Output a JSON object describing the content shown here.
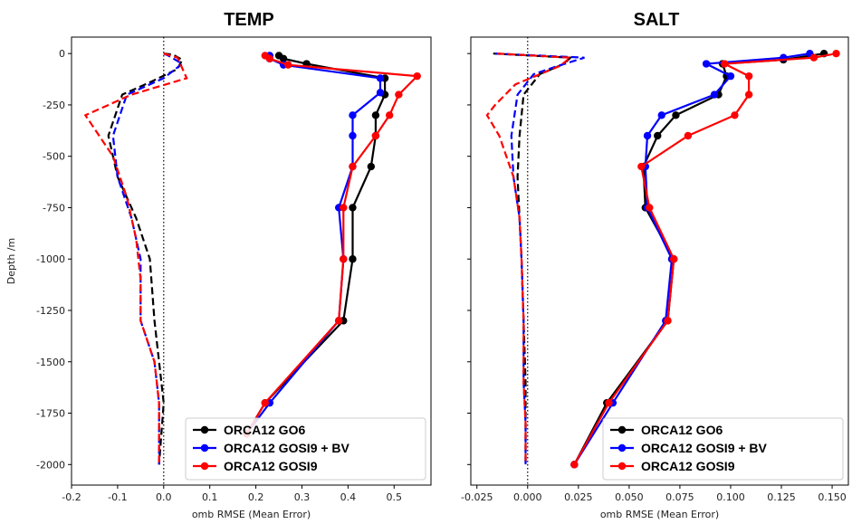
{
  "chart_data": [
    {
      "type": "line",
      "title": "TEMP",
      "xlabel": "omb RMSE (Mean Error)",
      "ylabel": "Depth /m",
      "xlim": [
        -0.2,
        0.58
      ],
      "ylim": [
        -2100,
        80
      ],
      "xticks": [
        -0.2,
        -0.1,
        0.0,
        0.1,
        0.2,
        0.3,
        0.4,
        0.5
      ],
      "xtick_labels": [
        "-0.2",
        "-0.1",
        "0.0",
        "0.1",
        "0.2",
        "0.3",
        "0.4",
        "0.5"
      ],
      "yticks": [
        0,
        -250,
        -500,
        -750,
        -1000,
        -1250,
        -1500,
        -1750,
        -2000
      ],
      "ytick_labels": [
        "0",
        "-250",
        "-500",
        "-750",
        "-1000",
        "-1250",
        "-1500",
        "-1750",
        "-2000"
      ],
      "zero_line": 0,
      "legend_position": "bottom-right",
      "series": [
        {
          "name": "ORCA12 GO6",
          "color": "#000000",
          "style": "rmse",
          "points": [
            [
              0.25,
              -10
            ],
            [
              0.26,
              -25
            ],
            [
              0.31,
              -50
            ],
            [
              0.48,
              -120
            ],
            [
              0.48,
              -200
            ],
            [
              0.46,
              -300
            ],
            [
              0.46,
              -400
            ],
            [
              0.45,
              -550
            ],
            [
              0.41,
              -750
            ],
            [
              0.41,
              -1000
            ],
            [
              0.39,
              -1300
            ],
            [
              0.22,
              -1700
            ],
            [
              0.18,
              -1850
            ]
          ]
        },
        {
          "name": "ORCA12 GOSI9 + BV",
          "color": "#0000ff",
          "style": "rmse",
          "points": [
            [
              0.23,
              -10
            ],
            [
              0.23,
              -25
            ],
            [
              0.26,
              -55
            ],
            [
              0.47,
              -120
            ],
            [
              0.47,
              -190
            ],
            [
              0.41,
              -300
            ],
            [
              0.41,
              -400
            ],
            [
              0.41,
              -550
            ],
            [
              0.38,
              -750
            ],
            [
              0.39,
              -1000
            ],
            [
              0.38,
              -1300
            ],
            [
              0.23,
              -1700
            ],
            [
              0.18,
              -1850
            ]
          ]
        },
        {
          "name": "ORCA12 GOSI9",
          "color": "#ff0000",
          "style": "rmse",
          "points": [
            [
              0.22,
              -10
            ],
            [
              0.23,
              -25
            ],
            [
              0.27,
              -55
            ],
            [
              0.55,
              -110
            ],
            [
              0.51,
              -200
            ],
            [
              0.49,
              -300
            ],
            [
              0.46,
              -400
            ],
            [
              0.41,
              -550
            ],
            [
              0.39,
              -750
            ],
            [
              0.39,
              -1000
            ],
            [
              0.38,
              -1300
            ],
            [
              0.22,
              -1700
            ],
            [
              0.18,
              -1850
            ]
          ]
        },
        {
          "name": "",
          "color": "#000000",
          "style": "mean",
          "points": [
            [
              0.0,
              0
            ],
            [
              0.02,
              -5
            ],
            [
              0.04,
              -30
            ],
            [
              0.03,
              -75
            ],
            [
              -0.03,
              -140
            ],
            [
              -0.09,
              -200
            ],
            [
              -0.12,
              -400
            ],
            [
              -0.1,
              -600
            ],
            [
              -0.06,
              -800
            ],
            [
              -0.03,
              -1000
            ],
            [
              -0.02,
              -1300
            ],
            [
              -0.01,
              -1500
            ],
            [
              0.0,
              -1700
            ],
            [
              -0.01,
              -2000
            ]
          ]
        },
        {
          "name": "",
          "color": "#0000ff",
          "style": "mean",
          "points": [
            [
              0.0,
              0
            ],
            [
              0.01,
              -10
            ],
            [
              0.04,
              -50
            ],
            [
              0.0,
              -120
            ],
            [
              -0.08,
              -200
            ],
            [
              -0.11,
              -400
            ],
            [
              -0.1,
              -600
            ],
            [
              -0.07,
              -800
            ],
            [
              -0.05,
              -1000
            ],
            [
              -0.05,
              -1300
            ],
            [
              -0.02,
              -1500
            ],
            [
              -0.01,
              -1700
            ],
            [
              -0.01,
              -2000
            ]
          ]
        },
        {
          "name": "",
          "color": "#ff0000",
          "style": "mean",
          "points": [
            [
              0.0,
              0
            ],
            [
              0.03,
              -20
            ],
            [
              0.05,
              -120
            ],
            [
              -0.07,
              -200
            ],
            [
              -0.17,
              -300
            ],
            [
              -0.11,
              -500
            ],
            [
              -0.08,
              -700
            ],
            [
              -0.06,
              -900
            ],
            [
              -0.05,
              -1100
            ],
            [
              -0.05,
              -1300
            ],
            [
              -0.02,
              -1500
            ],
            [
              -0.01,
              -1700
            ],
            [
              -0.01,
              -2000
            ]
          ]
        }
      ]
    },
    {
      "type": "line",
      "title": "SALT",
      "xlabel": "omb RMSE (Mean Error)",
      "ylabel": "",
      "xlim": [
        -0.028,
        0.158
      ],
      "ylim": [
        -2100,
        80
      ],
      "xticks": [
        -0.025,
        0.0,
        0.025,
        0.05,
        0.075,
        0.1,
        0.125,
        0.15
      ],
      "xtick_labels": [
        "-0.025",
        "0.000",
        "0.025",
        "0.050",
        "0.075",
        "0.100",
        "0.125",
        "0.150"
      ],
      "yticks": [
        0,
        -250,
        -500,
        -750,
        -1000,
        -1250,
        -1500,
        -1750,
        -2000
      ],
      "ytick_labels": [],
      "zero_line": 0,
      "legend_position": "bottom-right",
      "series": [
        {
          "name": "ORCA12 GO6",
          "color": "#000000",
          "style": "rmse",
          "points": [
            [
              0.146,
              0
            ],
            [
              0.126,
              -30
            ],
            [
              0.096,
              -50
            ],
            [
              0.098,
              -110
            ],
            [
              0.094,
              -200
            ],
            [
              0.073,
              -300
            ],
            [
              0.064,
              -400
            ],
            [
              0.057,
              -550
            ],
            [
              0.058,
              -750
            ],
            [
              0.072,
              -1000
            ],
            [
              0.069,
              -1300
            ],
            [
              0.039,
              -1700
            ],
            [
              0.023,
              -2000
            ]
          ]
        },
        {
          "name": "ORCA12 GOSI9 + BV",
          "color": "#0000ff",
          "style": "rmse",
          "points": [
            [
              0.139,
              0
            ],
            [
              0.126,
              -20
            ],
            [
              0.088,
              -50
            ],
            [
              0.1,
              -110
            ],
            [
              0.092,
              -200
            ],
            [
              0.066,
              -300
            ],
            [
              0.059,
              -400
            ],
            [
              0.058,
              -550
            ],
            [
              0.059,
              -750
            ],
            [
              0.071,
              -1000
            ],
            [
              0.068,
              -1300
            ],
            [
              0.042,
              -1700
            ],
            [
              0.023,
              -2000
            ]
          ]
        },
        {
          "name": "ORCA12 GOSI9",
          "color": "#ff0000",
          "style": "rmse",
          "points": [
            [
              0.152,
              0
            ],
            [
              0.141,
              -20
            ],
            [
              0.097,
              -50
            ],
            [
              0.109,
              -110
            ],
            [
              0.109,
              -200
            ],
            [
              0.102,
              -300
            ],
            [
              0.079,
              -400
            ],
            [
              0.056,
              -550
            ],
            [
              0.06,
              -750
            ],
            [
              0.072,
              -1000
            ],
            [
              0.069,
              -1300
            ],
            [
              0.04,
              -1700
            ],
            [
              0.023,
              -2000
            ]
          ]
        },
        {
          "name": "",
          "color": "#000000",
          "style": "mean",
          "points": [
            [
              -0.017,
              0
            ],
            [
              0.021,
              -20
            ],
            [
              0.018,
              -50
            ],
            [
              0.006,
              -100
            ],
            [
              -0.002,
              -200
            ],
            [
              -0.004,
              -400
            ],
            [
              -0.005,
              -600
            ],
            [
              -0.004,
              -800
            ],
            [
              -0.003,
              -1000
            ],
            [
              -0.002,
              -1300
            ],
            [
              -0.001,
              -1600
            ],
            [
              -0.001,
              -1800
            ],
            [
              -0.001,
              -2000
            ]
          ]
        },
        {
          "name": "",
          "color": "#0000ff",
          "style": "mean",
          "points": [
            [
              -0.016,
              0
            ],
            [
              0.028,
              -20
            ],
            [
              0.015,
              -60
            ],
            [
              0.003,
              -100
            ],
            [
              -0.005,
              -200
            ],
            [
              -0.008,
              -400
            ],
            [
              -0.007,
              -600
            ],
            [
              -0.004,
              -800
            ],
            [
              -0.003,
              -1000
            ],
            [
              -0.002,
              -1300
            ],
            [
              -0.002,
              -1600
            ],
            [
              -0.001,
              -1800
            ],
            [
              -0.001,
              -2000
            ]
          ]
        },
        {
          "name": "",
          "color": "#ff0000",
          "style": "mean",
          "points": [
            [
              -0.015,
              0
            ],
            [
              0.021,
              -20
            ],
            [
              0.016,
              -60
            ],
            [
              -0.006,
              -150
            ],
            [
              -0.016,
              -250
            ],
            [
              -0.02,
              -300
            ],
            [
              -0.014,
              -400
            ],
            [
              -0.007,
              -600
            ],
            [
              -0.004,
              -800
            ],
            [
              -0.003,
              -1000
            ],
            [
              -0.002,
              -1300
            ],
            [
              -0.002,
              -1600
            ],
            [
              -0.001,
              -1800
            ],
            [
              -0.001,
              -2000
            ]
          ]
        }
      ]
    }
  ]
}
